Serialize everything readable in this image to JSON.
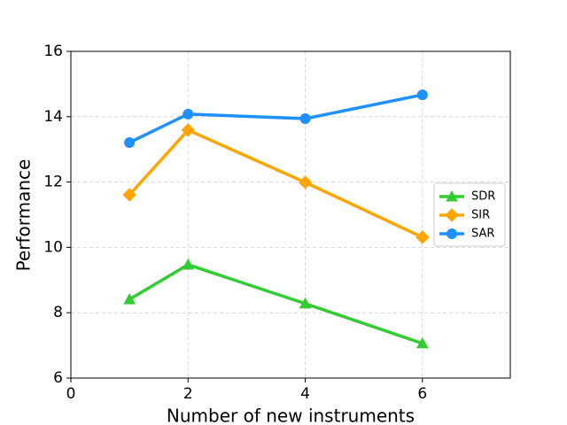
{
  "chart_data": {
    "type": "line",
    "xlabel": "Number of new instruments",
    "ylabel": "Performance",
    "x": [
      1,
      2,
      4,
      6
    ],
    "series": [
      {
        "name": "SDR",
        "color": "#33cc33",
        "marker": "triangle",
        "values": [
          8.41,
          9.47,
          8.28,
          7.06
        ]
      },
      {
        "name": "SIR",
        "color": "#ffa500",
        "marker": "diamond",
        "values": [
          11.61,
          13.59,
          11.99,
          10.31
        ]
      },
      {
        "name": "SAR",
        "color": "#1e90ff",
        "marker": "circle",
        "values": [
          13.21,
          14.08,
          13.94,
          14.67
        ]
      }
    ],
    "xlim": [
      0,
      7.5
    ],
    "xticks": [
      0,
      2,
      4,
      6
    ],
    "ylim": [
      6,
      16
    ],
    "yticks": [
      6,
      8,
      10,
      12,
      14,
      16
    ],
    "grid": true,
    "legend": "center right"
  }
}
